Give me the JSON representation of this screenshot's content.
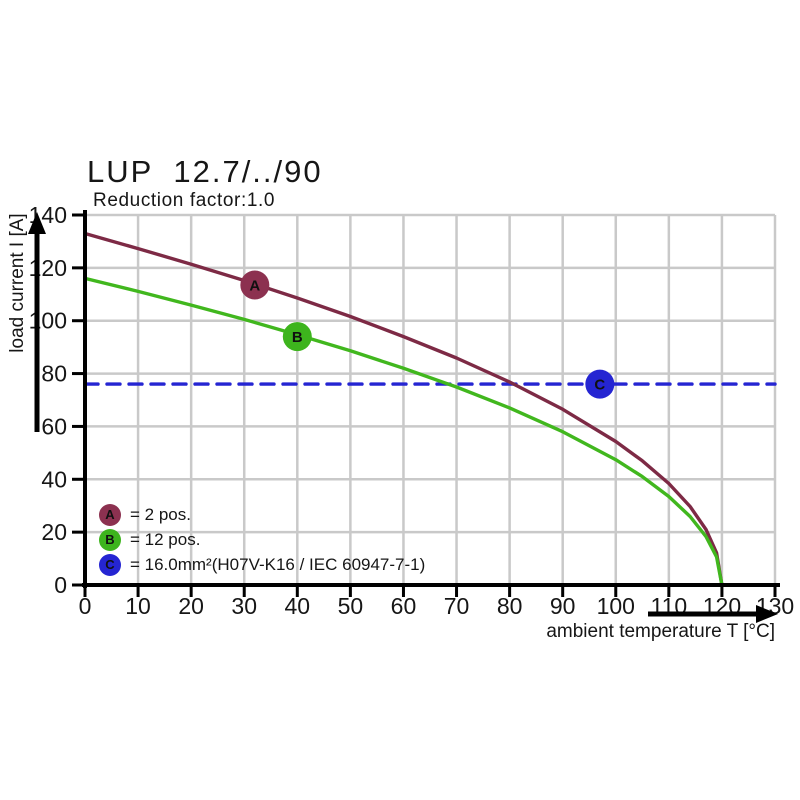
{
  "title": "LUP 12.7/../90",
  "subtitle": "Reduction factor:1.0",
  "axes": {
    "x": {
      "label": "ambient temperature T [°C]",
      "min": 0,
      "max": 130
    },
    "y": {
      "label": "load current I [A]",
      "min": 0,
      "max": 140
    }
  },
  "colors": {
    "series_a": "#7d2a45",
    "series_b": "#41b71e",
    "series_c": "#2525d2",
    "marker_a": "#8c3150",
    "marker_b": "#3db41d",
    "marker_c": "#2525d2",
    "grid": "#c9c9c9",
    "axis": "#000000"
  },
  "chart_data": {
    "type": "line",
    "title": "LUP 12.7/../90",
    "subtitle": "Reduction factor:1.0",
    "xlabel": "ambient temperature T [°C]",
    "ylabel": "load current I [A]",
    "xlim": [
      0,
      130
    ],
    "ylim": [
      0,
      140
    ],
    "x_ticks": [
      0,
      10,
      20,
      30,
      40,
      50,
      60,
      70,
      80,
      90,
      100,
      110,
      120,
      130
    ],
    "y_ticks": [
      0,
      20,
      40,
      60,
      80,
      100,
      120,
      140
    ],
    "grid": true,
    "legend_position": "lower-left",
    "series": [
      {
        "id": "A",
        "name": "2 pos.",
        "color": "#7d2a45",
        "marker_color": "#8c3150",
        "style": "solid",
        "marker": {
          "x": 32,
          "y": 113.5
        },
        "points": [
          [
            0,
            133
          ],
          [
            10,
            127.3
          ],
          [
            20,
            121.4
          ],
          [
            30,
            115.2
          ],
          [
            40,
            108.6
          ],
          [
            50,
            101.6
          ],
          [
            60,
            94
          ],
          [
            70,
            85.9
          ],
          [
            80,
            76.8
          ],
          [
            90,
            66.5
          ],
          [
            100,
            54.3
          ],
          [
            105,
            47
          ],
          [
            110,
            38.4
          ],
          [
            114,
            29.7
          ],
          [
            117,
            21
          ],
          [
            119,
            12.1
          ],
          [
            120,
            0
          ]
        ]
      },
      {
        "id": "B",
        "name": "12 pos.",
        "color": "#41b71e",
        "marker_color": "#3db41d",
        "style": "solid",
        "marker": {
          "x": 40,
          "y": 94
        },
        "points": [
          [
            0,
            116
          ],
          [
            10,
            111.1
          ],
          [
            20,
            105.9
          ],
          [
            30,
            100.5
          ],
          [
            40,
            94.7
          ],
          [
            50,
            88.6
          ],
          [
            60,
            82
          ],
          [
            70,
            74.9
          ],
          [
            80,
            67
          ],
          [
            90,
            58
          ],
          [
            100,
            47.4
          ],
          [
            105,
            41
          ],
          [
            110,
            33.5
          ],
          [
            114,
            25.9
          ],
          [
            117,
            18.3
          ],
          [
            119,
            10.6
          ],
          [
            120,
            0
          ]
        ]
      },
      {
        "id": "C",
        "name": "16.0mm²(H07V-K16 / IEC 60947-7-1)",
        "color": "#2525d2",
        "marker_color": "#2525d2",
        "style": "dashed",
        "marker": {
          "x": 97,
          "y": 76
        },
        "points": [
          [
            0,
            76
          ],
          [
            130,
            76
          ]
        ]
      }
    ]
  },
  "legend": {
    "items": [
      {
        "id": "A",
        "label": "= 2 pos.",
        "color": "#8c3150"
      },
      {
        "id": "B",
        "label": "= 12 pos.",
        "color": "#3db41d"
      },
      {
        "id": "C",
        "label": "= 16.0mm²(H07V-K16 / IEC 60947-7-1)",
        "color": "#2525d2"
      }
    ]
  }
}
